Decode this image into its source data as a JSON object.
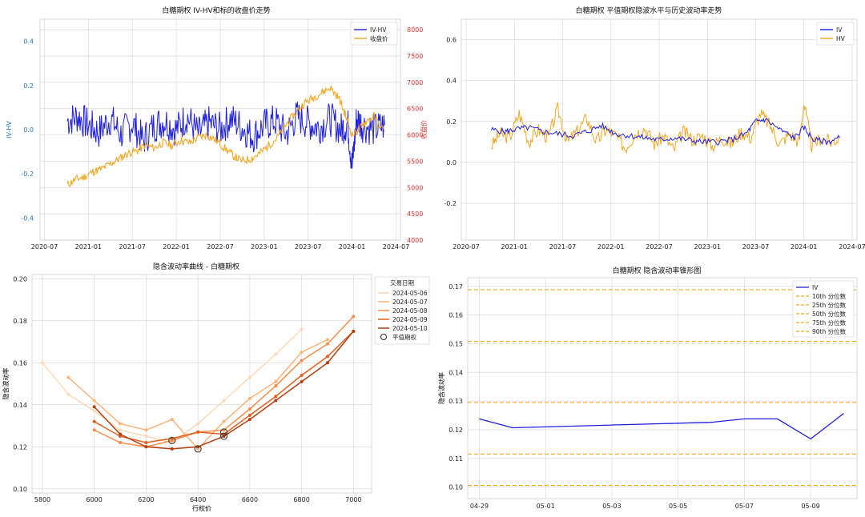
{
  "chart_data": [
    {
      "id": "c1",
      "type": "line",
      "title": "白糖期权 IV-HV和标的收盘价走势",
      "ylabel": "IV-HV",
      "ylabel2": "收盘价",
      "ylim": [
        -0.5,
        0.5
      ],
      "y2lim": [
        4000,
        8200
      ],
      "yticks": [
        -0.4,
        -0.2,
        0.0,
        0.2,
        0.4
      ],
      "y2ticks": [
        4000,
        4500,
        5000,
        5500,
        6000,
        6500,
        7000,
        7500,
        8000
      ],
      "xdomain": [
        2020.5,
        2024.55
      ],
      "xticks": [
        {
          "label": "2020-07",
          "x": 2020.5
        },
        {
          "label": "2021-01",
          "x": 2021.0
        },
        {
          "label": "2021-07",
          "x": 2021.5
        },
        {
          "label": "2022-01",
          "x": 2022.0
        },
        {
          "label": "2022-07",
          "x": 2022.5
        },
        {
          "label": "2023-01",
          "x": 2023.0
        },
        {
          "label": "2023-07",
          "x": 2023.5
        },
        {
          "label": "2024-01",
          "x": 2024.0
        },
        {
          "label": "2024-07",
          "x": 2024.5
        }
      ],
      "legend": [
        "IV-HV",
        "收盘价"
      ],
      "legend_position": "top-right",
      "series": [
        {
          "name": "IV-HV",
          "axis": "left",
          "color": "#1f1fe0",
          "x": [
            2020.76,
            2020.88,
            2021.0,
            2021.12,
            2021.25,
            2021.37,
            2021.5,
            2021.62,
            2021.75,
            2021.87,
            2022.0,
            2022.12,
            2022.25,
            2022.37,
            2022.5,
            2022.62,
            2022.75,
            2022.87,
            2023.0,
            2023.12,
            2023.25,
            2023.37,
            2023.5,
            2023.62,
            2023.75,
            2023.87,
            2023.95,
            2024.0,
            2024.05,
            2024.12,
            2024.25,
            2024.37
          ],
          "y": [
            0.04,
            0.06,
            0.02,
            -0.01,
            0.05,
            -0.02,
            0.03,
            -0.05,
            0.02,
            0.04,
            0.0,
            0.06,
            -0.02,
            0.03,
            0.0,
            0.05,
            0.01,
            -0.03,
            0.02,
            0.04,
            -0.02,
            0.06,
            0.03,
            0.01,
            0.05,
            0.0,
            0.03,
            -0.17,
            0.05,
            0.02,
            0.0,
            0.02
          ]
        },
        {
          "name": "收盘价",
          "axis": "right",
          "color": "#f5a623",
          "x": [
            2020.76,
            2020.85,
            2020.95,
            2021.05,
            2021.15,
            2021.25,
            2021.35,
            2021.45,
            2021.55,
            2021.65,
            2021.75,
            2021.85,
            2021.95,
            2022.05,
            2022.15,
            2022.25,
            2022.35,
            2022.45,
            2022.55,
            2022.65,
            2022.75,
            2022.85,
            2022.95,
            2023.05,
            2023.15,
            2023.25,
            2023.35,
            2023.45,
            2023.55,
            2023.65,
            2023.75,
            2023.85,
            2023.92,
            2024.0,
            2024.08,
            2024.15,
            2024.25,
            2024.37
          ],
          "y": [
            5050,
            5150,
            5200,
            5300,
            5350,
            5450,
            5550,
            5650,
            5700,
            5800,
            5750,
            5850,
            5800,
            5900,
            5850,
            5950,
            6000,
            5900,
            5750,
            5600,
            5500,
            5550,
            5650,
            5800,
            5950,
            6200,
            6400,
            6600,
            6700,
            6800,
            6900,
            6700,
            6400,
            6000,
            6100,
            6250,
            6350,
            6050
          ]
        }
      ]
    },
    {
      "id": "c2",
      "type": "line",
      "title": "白糖期权 平值期权隐波水平与历史波动率走势",
      "ylim": [
        -0.38,
        0.7
      ],
      "yticks": [
        -0.2,
        0.0,
        0.2,
        0.4,
        0.6
      ],
      "xdomain": [
        2020.5,
        2024.55
      ],
      "xticks": [
        {
          "label": "2020-07",
          "x": 2020.5
        },
        {
          "label": "2021-01",
          "x": 2021.0
        },
        {
          "label": "2021-07",
          "x": 2021.5
        },
        {
          "label": "2022-01",
          "x": 2022.0
        },
        {
          "label": "2022-07",
          "x": 2022.5
        },
        {
          "label": "2023-01",
          "x": 2023.0
        },
        {
          "label": "2023-07",
          "x": 2023.5
        },
        {
          "label": "2024-01",
          "x": 2024.0
        },
        {
          "label": "2024-07",
          "x": 2024.5
        }
      ],
      "legend": [
        "IV",
        "HV"
      ],
      "legend_position": "top-right",
      "series": [
        {
          "name": "IV",
          "color": "#1f1fe0",
          "x": [
            2020.76,
            2020.9,
            2021.0,
            2021.15,
            2021.3,
            2021.45,
            2021.6,
            2021.75,
            2021.9,
            2022.05,
            2022.2,
            2022.35,
            2022.5,
            2022.65,
            2022.8,
            2022.95,
            2023.1,
            2023.25,
            2023.4,
            2023.5,
            2023.6,
            2023.75,
            2023.9,
            2024.0,
            2024.1,
            2024.25,
            2024.37
          ],
          "y": [
            0.16,
            0.15,
            0.16,
            0.17,
            0.15,
            0.14,
            0.13,
            0.15,
            0.18,
            0.14,
            0.13,
            0.12,
            0.11,
            0.12,
            0.11,
            0.1,
            0.1,
            0.11,
            0.14,
            0.2,
            0.21,
            0.16,
            0.12,
            0.17,
            0.11,
            0.1,
            0.12
          ]
        },
        {
          "name": "HV",
          "color": "#f5a623",
          "x": [
            2020.76,
            2020.85,
            2020.95,
            2021.05,
            2021.15,
            2021.25,
            2021.35,
            2021.45,
            2021.55,
            2021.65,
            2021.75,
            2021.85,
            2021.95,
            2022.05,
            2022.15,
            2022.25,
            2022.35,
            2022.45,
            2022.55,
            2022.65,
            2022.75,
            2022.85,
            2022.95,
            2023.05,
            2023.15,
            2023.25,
            2023.35,
            2023.45,
            2023.55,
            2023.65,
            2023.75,
            2023.85,
            2023.95,
            2024.0,
            2024.08,
            2024.18,
            2024.28,
            2024.37
          ],
          "y": [
            0.08,
            0.14,
            0.12,
            0.24,
            0.1,
            0.16,
            0.12,
            0.26,
            0.1,
            0.15,
            0.22,
            0.1,
            0.16,
            0.13,
            0.07,
            0.14,
            0.17,
            0.09,
            0.13,
            0.06,
            0.15,
            0.11,
            0.13,
            0.08,
            0.12,
            0.09,
            0.15,
            0.12,
            0.24,
            0.18,
            0.09,
            0.14,
            0.1,
            0.29,
            0.08,
            0.12,
            0.1,
            0.12
          ]
        }
      ]
    },
    {
      "id": "c3",
      "type": "line",
      "title": "隐含波动率曲线 - 白糖期权",
      "xlabel": "行权价",
      "ylabel": "隐含波动率",
      "xlim": [
        5760,
        7070
      ],
      "ylim": [
        0.098,
        0.202
      ],
      "xticks": [
        5800,
        6000,
        6200,
        6400,
        6600,
        6800,
        7000
      ],
      "yticks": [
        0.1,
        0.12,
        0.14,
        0.16,
        0.18,
        0.2
      ],
      "ytick_labels": [
        "0.10",
        "0.12",
        "0.14",
        "0.16",
        "0.18",
        "0.20"
      ],
      "legend_title": "交易日期",
      "legend": [
        "2024-05-06",
        "2024-05-07",
        "2024-05-08",
        "2024-05-09",
        "2024-05-10",
        "平值期权"
      ],
      "legend_position": "outside-right",
      "series": [
        {
          "name": "2024-05-06",
          "color": "#fdd9b5",
          "x": [
            5800,
            5900,
            6000,
            6100,
            6200,
            6300,
            6400,
            6500,
            6600,
            6700,
            6800
          ],
          "y": [
            0.16,
            0.145,
            0.137,
            0.128,
            0.125,
            0.122,
            0.131,
            0.142,
            0.153,
            0.164,
            0.176
          ]
        },
        {
          "name": "2024-05-07",
          "color": "#fdb37a",
          "x": [
            5900,
            6000,
            6100,
            6200,
            6300,
            6400,
            6500,
            6600,
            6700,
            6800,
            6900
          ],
          "y": [
            0.153,
            0.142,
            0.131,
            0.128,
            0.133,
            0.119,
            0.132,
            0.143,
            0.151,
            0.165,
            0.171
          ]
        },
        {
          "name": "2024-05-08",
          "color": "#f88d4a",
          "x": [
            6000,
            6100,
            6200,
            6300,
            6400,
            6500,
            6600,
            6700,
            6800,
            6900,
            7000
          ],
          "y": [
            0.128,
            0.122,
            0.12,
            0.123,
            0.127,
            0.128,
            0.138,
            0.149,
            0.161,
            0.169,
            0.182
          ]
        },
        {
          "name": "2024-05-09",
          "color": "#e45f1d",
          "x": [
            6000,
            6100,
            6200,
            6300,
            6400,
            6500,
            6600,
            6700,
            6800,
            6900,
            7000
          ],
          "y": [
            0.132,
            0.125,
            0.122,
            0.124,
            0.127,
            0.126,
            0.135,
            0.144,
            0.154,
            0.163,
            0.175
          ]
        },
        {
          "name": "2024-05-10",
          "color": "#b33f0f",
          "x": [
            6000,
            6100,
            6200,
            6300,
            6400,
            6500,
            6600,
            6700,
            6800,
            6900,
            7000
          ],
          "y": [
            0.139,
            0.126,
            0.12,
            0.119,
            0.12,
            0.125,
            0.133,
            0.142,
            0.151,
            0.16,
            0.175
          ]
        }
      ],
      "atm_points": {
        "x": [
          6300,
          6400,
          6500,
          6500
        ],
        "y": [
          0.123,
          0.119,
          0.127,
          0.125
        ]
      }
    },
    {
      "id": "c4",
      "type": "line",
      "title": "白糖期权 隐含波动率锥形图",
      "ylabel": "隐含波动率",
      "xlim": [
        -0.35,
        11.4
      ],
      "ylim": [
        0.096,
        0.173
      ],
      "yticks": [
        0.1,
        0.11,
        0.12,
        0.13,
        0.14,
        0.15,
        0.16,
        0.17
      ],
      "ytick_labels": [
        "0.10",
        "0.11",
        "0.12",
        "0.13",
        "0.14",
        "0.15",
        "0.16",
        "0.17"
      ],
      "xticks": [
        {
          "label": "04-29",
          "x": 0
        },
        {
          "label": "05-01",
          "x": 2
        },
        {
          "label": "05-03",
          "x": 4
        },
        {
          "label": "05-05",
          "x": 6
        },
        {
          "label": "05-07",
          "x": 8
        },
        {
          "label": "05-09",
          "x": 10
        }
      ],
      "legend": [
        "IV",
        "10th 分位数",
        "25th 分位数",
        "50th 分位数",
        "75th 分位数",
        "90th 分位数"
      ],
      "legend_position": "top-right",
      "iv": {
        "x": [
          0,
          1,
          7,
          8,
          9,
          10,
          11
        ],
        "y": [
          0.1238,
          0.1207,
          0.1226,
          0.1238,
          0.1238,
          0.1168,
          0.1257
        ]
      },
      "percentiles": [
        {
          "name": "10th 分位数",
          "value": 0.1006
        },
        {
          "name": "25th 分位数",
          "value": 0.1115
        },
        {
          "name": "50th 分位数",
          "value": 0.1295
        },
        {
          "name": "75th 分位数",
          "value": 0.1508
        },
        {
          "name": "90th 分位数",
          "value": 0.1688
        }
      ],
      "colors": {
        "iv": "#1f1fe0",
        "pct": "#f5a623"
      }
    }
  ]
}
